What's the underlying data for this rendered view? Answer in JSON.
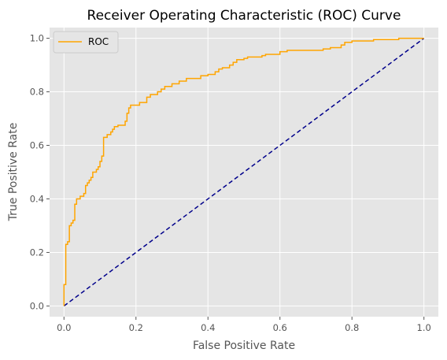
{
  "chart_data": {
    "type": "line",
    "title": "Receiver Operating Characteristic (ROC) Curve",
    "xlabel": "False Positive Rate",
    "ylabel": "True Positive Rate",
    "xlim": [
      -0.04,
      1.04
    ],
    "ylim": [
      -0.04,
      1.04
    ],
    "grid": true,
    "legend_position": "top-left",
    "x_ticks": [
      0.0,
      0.2,
      0.4,
      0.6,
      0.8,
      1.0
    ],
    "y_ticks": [
      0.0,
      0.2,
      0.4,
      0.6,
      0.8,
      1.0
    ],
    "x_tick_labels": [
      "0.0",
      "0.2",
      "0.4",
      "0.6",
      "0.8",
      "1.0"
    ],
    "y_tick_labels": [
      "0.0",
      "0.2",
      "0.4",
      "0.6",
      "0.8",
      "1.0"
    ],
    "colors": {
      "background": "#e5e5e5",
      "grid": "#ffffff",
      "roc": "#ffa500",
      "chance": "#00008b",
      "text": "#555555"
    },
    "series": [
      {
        "name": "ROC",
        "style": "step",
        "points": [
          [
            0.0,
            0.0
          ],
          [
            0.0,
            0.08
          ],
          [
            0.005,
            0.08
          ],
          [
            0.005,
            0.23
          ],
          [
            0.01,
            0.23
          ],
          [
            0.01,
            0.24
          ],
          [
            0.015,
            0.24
          ],
          [
            0.015,
            0.3
          ],
          [
            0.02,
            0.3
          ],
          [
            0.02,
            0.31
          ],
          [
            0.025,
            0.31
          ],
          [
            0.025,
            0.32
          ],
          [
            0.03,
            0.32
          ],
          [
            0.03,
            0.38
          ],
          [
            0.035,
            0.38
          ],
          [
            0.035,
            0.4
          ],
          [
            0.045,
            0.4
          ],
          [
            0.045,
            0.41
          ],
          [
            0.055,
            0.41
          ],
          [
            0.055,
            0.42
          ],
          [
            0.06,
            0.42
          ],
          [
            0.06,
            0.45
          ],
          [
            0.065,
            0.45
          ],
          [
            0.065,
            0.46
          ],
          [
            0.07,
            0.46
          ],
          [
            0.07,
            0.47
          ],
          [
            0.075,
            0.47
          ],
          [
            0.075,
            0.48
          ],
          [
            0.08,
            0.48
          ],
          [
            0.08,
            0.5
          ],
          [
            0.09,
            0.5
          ],
          [
            0.09,
            0.51
          ],
          [
            0.095,
            0.51
          ],
          [
            0.095,
            0.52
          ],
          [
            0.1,
            0.52
          ],
          [
            0.1,
            0.54
          ],
          [
            0.105,
            0.54
          ],
          [
            0.105,
            0.56
          ],
          [
            0.11,
            0.56
          ],
          [
            0.11,
            0.63
          ],
          [
            0.12,
            0.63
          ],
          [
            0.12,
            0.64
          ],
          [
            0.13,
            0.64
          ],
          [
            0.13,
            0.65
          ],
          [
            0.135,
            0.65
          ],
          [
            0.135,
            0.66
          ],
          [
            0.14,
            0.66
          ],
          [
            0.14,
            0.67
          ],
          [
            0.15,
            0.67
          ],
          [
            0.15,
            0.675
          ],
          [
            0.17,
            0.675
          ],
          [
            0.17,
            0.69
          ],
          [
            0.175,
            0.69
          ],
          [
            0.175,
            0.72
          ],
          [
            0.18,
            0.72
          ],
          [
            0.18,
            0.74
          ],
          [
            0.185,
            0.74
          ],
          [
            0.185,
            0.75
          ],
          [
            0.21,
            0.75
          ],
          [
            0.21,
            0.76
          ],
          [
            0.23,
            0.76
          ],
          [
            0.23,
            0.78
          ],
          [
            0.24,
            0.78
          ],
          [
            0.24,
            0.79
          ],
          [
            0.26,
            0.79
          ],
          [
            0.26,
            0.8
          ],
          [
            0.27,
            0.8
          ],
          [
            0.27,
            0.81
          ],
          [
            0.28,
            0.81
          ],
          [
            0.28,
            0.82
          ],
          [
            0.3,
            0.82
          ],
          [
            0.3,
            0.83
          ],
          [
            0.32,
            0.83
          ],
          [
            0.32,
            0.84
          ],
          [
            0.34,
            0.84
          ],
          [
            0.34,
            0.85
          ],
          [
            0.38,
            0.85
          ],
          [
            0.38,
            0.86
          ],
          [
            0.4,
            0.86
          ],
          [
            0.4,
            0.865
          ],
          [
            0.42,
            0.865
          ],
          [
            0.42,
            0.875
          ],
          [
            0.43,
            0.875
          ],
          [
            0.43,
            0.885
          ],
          [
            0.44,
            0.885
          ],
          [
            0.44,
            0.89
          ],
          [
            0.46,
            0.89
          ],
          [
            0.46,
            0.9
          ],
          [
            0.47,
            0.9
          ],
          [
            0.47,
            0.91
          ],
          [
            0.48,
            0.91
          ],
          [
            0.48,
            0.92
          ],
          [
            0.5,
            0.92
          ],
          [
            0.5,
            0.925
          ],
          [
            0.51,
            0.925
          ],
          [
            0.51,
            0.93
          ],
          [
            0.55,
            0.93
          ],
          [
            0.55,
            0.935
          ],
          [
            0.56,
            0.935
          ],
          [
            0.56,
            0.94
          ],
          [
            0.6,
            0.94
          ],
          [
            0.6,
            0.95
          ],
          [
            0.62,
            0.95
          ],
          [
            0.62,
            0.955
          ],
          [
            0.72,
            0.955
          ],
          [
            0.72,
            0.96
          ],
          [
            0.74,
            0.96
          ],
          [
            0.74,
            0.965
          ],
          [
            0.77,
            0.965
          ],
          [
            0.77,
            0.975
          ],
          [
            0.78,
            0.975
          ],
          [
            0.78,
            0.985
          ],
          [
            0.8,
            0.985
          ],
          [
            0.8,
            0.99
          ],
          [
            0.86,
            0.99
          ],
          [
            0.86,
            0.995
          ],
          [
            0.93,
            0.995
          ],
          [
            0.93,
            1.0
          ],
          [
            1.0,
            1.0
          ]
        ]
      },
      {
        "name": "",
        "style": "dashed",
        "points": [
          [
            0.0,
            0.0
          ],
          [
            1.0,
            1.0
          ]
        ]
      }
    ]
  }
}
